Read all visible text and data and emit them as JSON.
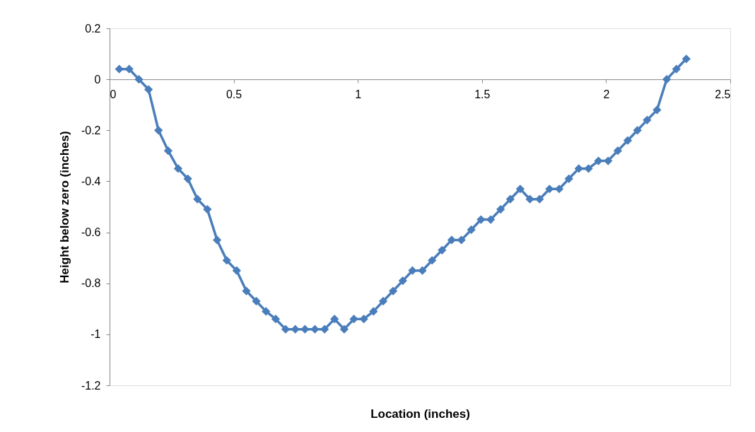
{
  "chart_data": {
    "type": "line",
    "xlabel": "Location (inches)",
    "ylabel": "Height below zero (inches)",
    "x": [
      0.039,
      0.079,
      0.118,
      0.157,
      0.197,
      0.236,
      0.276,
      0.315,
      0.354,
      0.394,
      0.433,
      0.472,
      0.512,
      0.551,
      0.591,
      0.63,
      0.669,
      0.709,
      0.748,
      0.787,
      0.827,
      0.866,
      0.906,
      0.945,
      0.984,
      1.024,
      1.063,
      1.102,
      1.142,
      1.181,
      1.22,
      1.26,
      1.299,
      1.339,
      1.378,
      1.417,
      1.457,
      1.496,
      1.535,
      1.575,
      1.614,
      1.654,
      1.693,
      1.732,
      1.772,
      1.811,
      1.85,
      1.89,
      1.929,
      1.969,
      2.008,
      2.047,
      2.087,
      2.126,
      2.165,
      2.205,
      2.244,
      2.283,
      2.323
    ],
    "series": [
      {
        "color": "#4a7ebb",
        "values": [
          0.04,
          0.04,
          0,
          -0.04,
          -0.2,
          -0.28,
          -0.35,
          -0.39,
          -0.47,
          -0.51,
          -0.63,
          -0.71,
          -0.75,
          -0.83,
          -0.87,
          -0.91,
          -0.94,
          -0.98,
          -0.98,
          -0.98,
          -0.98,
          -0.98,
          -0.94,
          -0.98,
          -0.94,
          -0.94,
          -0.91,
          -0.87,
          -0.83,
          -0.79,
          -0.75,
          -0.75,
          -0.71,
          -0.67,
          -0.63,
          -0.63,
          -0.59,
          -0.55,
          -0.55,
          -0.51,
          -0.47,
          -0.43,
          -0.47,
          -0.47,
          -0.43,
          -0.43,
          -0.39,
          -0.35,
          -0.35,
          -0.32,
          -0.32,
          -0.28,
          -0.24,
          -0.2,
          -0.16,
          -0.12,
          0,
          0.04,
          0.08
        ]
      }
    ],
    "xlim": [
      0,
      2.5
    ],
    "xticks": [
      0,
      0.5,
      1,
      1.5,
      2,
      2.5
    ],
    "ylim": [
      -1.2,
      0.2
    ],
    "yticks": [
      -1.2,
      -1,
      -0.8,
      -0.6,
      -0.4,
      -0.2,
      0,
      0.2
    ],
    "grid": false,
    "marker": "diamond",
    "line_style": "solid"
  }
}
